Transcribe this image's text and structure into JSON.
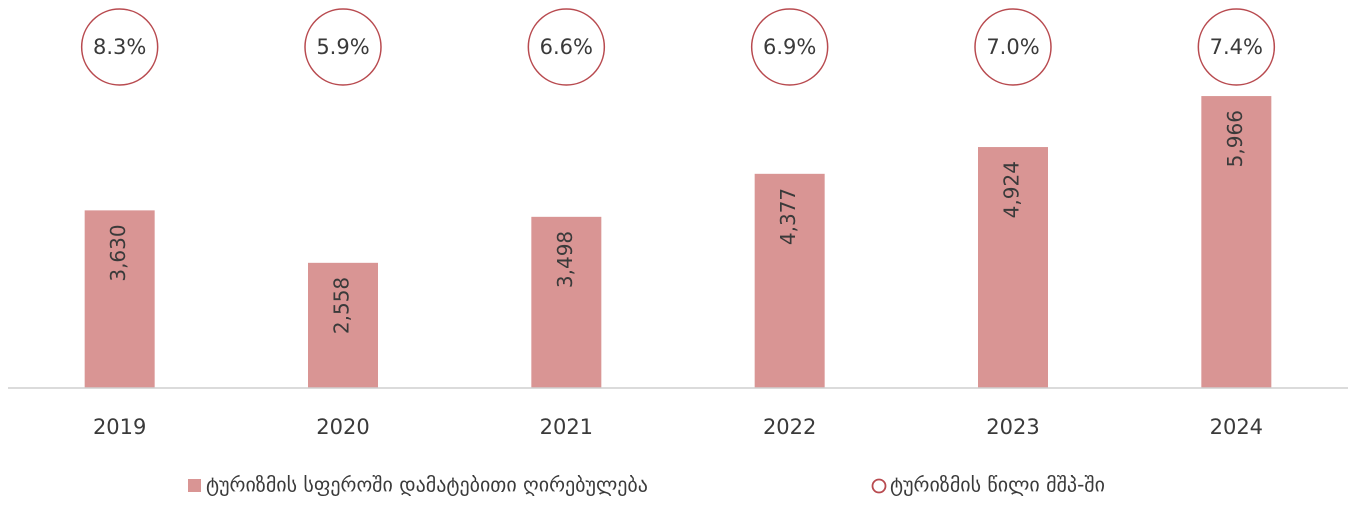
{
  "chart_data": {
    "type": "bar",
    "categories": [
      "2019",
      "2020",
      "2021",
      "2022",
      "2023",
      "2024"
    ],
    "series": [
      {
        "name": "ტურიზმის სფეროში დამატებითი ღირებულება",
        "color": "#d99594",
        "values": [
          3630,
          2558,
          3498,
          4377,
          4924,
          5966
        ],
        "value_labels": [
          "3,630",
          "2,558",
          "3,498",
          "4,377",
          "4,924",
          "5,966"
        ]
      },
      {
        "name": "ტურიზმის წილი მშპ-ში",
        "color": "#b84a4f",
        "marker": "circle",
        "values": [
          8.3,
          5.9,
          6.6,
          6.9,
          7.0,
          7.4
        ],
        "value_labels": [
          "8.3%",
          "5.9%",
          "6.6%",
          "6.9%",
          "7.0%",
          "7.4%"
        ]
      }
    ],
    "ylim": [
      0,
      6000
    ],
    "legend": "bottom"
  }
}
